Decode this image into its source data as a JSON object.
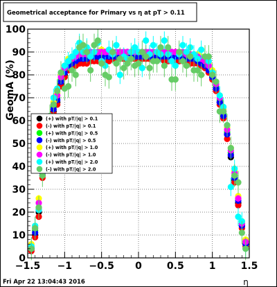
{
  "chart_data": {
    "type": "scatter",
    "title": "Geometrical acceptance for Primary vs   η at pT > 0.11",
    "xlabel": "η",
    "ylabel": "GeomA (%)",
    "xlim": [
      -1.5,
      1.5
    ],
    "ylim": [
      0,
      100
    ],
    "xticks": [
      "−1.5",
      "−1",
      "−0.5",
      "0",
      "0.5",
      "1",
      "1.5"
    ],
    "yticks": [
      "0",
      "10",
      "20",
      "30",
      "40",
      "50",
      "60",
      "70",
      "80",
      "90",
      "100"
    ],
    "grid": true,
    "legend_position": "middle-left",
    "eta_bins": [
      -1.45,
      -1.4,
      -1.35,
      -1.3,
      -1.25,
      -1.2,
      -1.15,
      -1.1,
      -1.05,
      -1.0,
      -0.95,
      -0.9,
      -0.85,
      -0.8,
      -0.75,
      -0.7,
      -0.65,
      -0.6,
      -0.55,
      -0.5,
      -0.45,
      -0.4,
      -0.35,
      -0.3,
      -0.25,
      -0.2,
      -0.15,
      -0.1,
      -0.05,
      0.0,
      0.05,
      0.1,
      0.15,
      0.2,
      0.25,
      0.3,
      0.35,
      0.4,
      0.45,
      0.5,
      0.55,
      0.6,
      0.65,
      0.7,
      0.75,
      0.8,
      0.85,
      0.9,
      0.95,
      1.0,
      1.05,
      1.1,
      1.15,
      1.2,
      1.25,
      1.3,
      1.35,
      1.4,
      1.45
    ],
    "series": [
      {
        "name": "(+) with pT/|q| > 0.1",
        "color": "#000000",
        "marker_fraction": 1.0,
        "err": [
          0.6,
          0.6,
          0.6,
          0.6,
          0.6,
          0.6,
          0.6,
          0.6,
          0.6,
          0.6,
          0.6,
          0.6,
          0.6,
          0.6,
          0.6,
          0.6,
          0.6,
          0.6,
          0.6,
          0.6,
          0.6,
          0.6,
          0.6,
          0.6,
          0.6,
          0.6,
          0.6,
          0.6,
          0.6,
          0.6,
          0.6,
          0.6,
          0.6,
          0.6,
          0.6,
          0.6,
          0.6,
          0.6,
          0.6,
          0.6,
          0.6,
          0.6,
          0.6,
          0.6,
          0.6,
          0.6,
          0.6,
          0.6,
          0.6,
          0.6,
          0.6,
          0.6,
          0.6,
          0.6,
          0.6,
          0.6,
          0.6,
          0.6,
          0.6
        ],
        "values": [
          4,
          10,
          20,
          36,
          46,
          56,
          64,
          68,
          76,
          80,
          83,
          84,
          85,
          86,
          86,
          86,
          87,
          87,
          87,
          87,
          87,
          87,
          88,
          88,
          88,
          88,
          88,
          88,
          88,
          88,
          88,
          88,
          88,
          88,
          88,
          88,
          87,
          87,
          87,
          87,
          87,
          87,
          87,
          86,
          86,
          86,
          85,
          84,
          82,
          79,
          74,
          68,
          62,
          54,
          44,
          34,
          24,
          14,
          6
        ]
      },
      {
        "name": "(-) with pT/|q| > 0.1",
        "color": "#ff0000",
        "marker_fraction": 0.95,
        "err": [
          0.6,
          0.6,
          0.6,
          0.6,
          0.6,
          0.6,
          0.6,
          0.6,
          0.6,
          0.6,
          0.6,
          0.6,
          0.6,
          0.6,
          0.6,
          0.6,
          0.6,
          0.6,
          0.6,
          0.6,
          0.6,
          0.6,
          0.6,
          0.6,
          0.6,
          0.6,
          0.6,
          0.6,
          0.6,
          0.6,
          0.6,
          0.6,
          0.6,
          0.6,
          0.6,
          0.6,
          0.6,
          0.6,
          0.6,
          0.6,
          0.6,
          0.6,
          0.6,
          0.6,
          0.6,
          0.6,
          0.6,
          0.6,
          0.6,
          0.6,
          0.6,
          0.6,
          0.6,
          0.6,
          0.6,
          0.6,
          0.6,
          0.6,
          0.6
        ],
        "values": [
          3,
          9,
          18,
          35,
          45,
          55,
          63,
          67,
          75,
          79,
          82,
          83,
          84,
          85,
          85,
          85,
          86,
          86,
          86,
          86,
          86,
          86,
          87,
          87,
          87,
          87,
          87,
          87,
          87,
          87,
          87,
          87,
          87,
          87,
          87,
          87,
          86,
          86,
          86,
          86,
          86,
          86,
          86,
          85,
          85,
          85,
          84,
          83,
          81,
          78,
          73,
          67,
          61,
          52,
          45,
          33,
          23,
          13,
          5
        ]
      },
      {
        "name": "(+) with pT/|q| > 0.5",
        "color": "#00ff00",
        "marker_fraction": 0.95,
        "err": [
          1,
          1,
          1,
          1,
          1,
          1,
          1,
          1,
          1,
          1,
          1,
          1,
          1,
          1,
          1,
          1,
          1,
          1,
          1,
          1,
          1,
          1,
          1,
          1,
          1,
          1,
          1,
          1,
          1,
          1,
          1,
          1,
          1,
          1,
          1,
          1,
          1,
          1,
          1,
          1,
          1,
          1,
          1,
          1,
          1,
          1,
          1,
          1,
          1,
          1,
          1,
          1,
          1,
          1,
          1,
          1,
          1,
          1,
          1
        ],
        "values": [
          5,
          12,
          22,
          38,
          48,
          58,
          66,
          70,
          78,
          82,
          85,
          86,
          87,
          88,
          88,
          88,
          89,
          89,
          89,
          89,
          89,
          89,
          89,
          89,
          89,
          89,
          89,
          89,
          89,
          89,
          89,
          89,
          89,
          89,
          89,
          89,
          89,
          89,
          89,
          89,
          89,
          89,
          88,
          88,
          88,
          87,
          86,
          85,
          83,
          80,
          75,
          69,
          63,
          55,
          46,
          36,
          26,
          15,
          7
        ]
      },
      {
        "name": "(-) with pT/|q| > 0.5",
        "color": "#0000ff",
        "marker_fraction": 0.95,
        "err": [
          1,
          1,
          1,
          1,
          1,
          1,
          1,
          1,
          1,
          1,
          1,
          1,
          1,
          1,
          1,
          1,
          1,
          1,
          1,
          1,
          1,
          1,
          1,
          1,
          1,
          1,
          1,
          1,
          1,
          1,
          1,
          1,
          1,
          1,
          1,
          1,
          1,
          1,
          1,
          1,
          1,
          1,
          1,
          1,
          1,
          1,
          1,
          1,
          1,
          1,
          1,
          1,
          1,
          1,
          1,
          1,
          1,
          1,
          1
        ],
        "values": [
          4,
          11,
          21,
          37,
          47,
          57,
          65,
          69,
          77,
          81,
          84,
          85,
          86,
          87,
          87,
          87,
          88,
          88,
          88,
          88,
          88,
          88,
          88,
          88,
          88,
          88,
          88,
          88,
          88,
          88,
          88,
          88,
          88,
          88,
          88,
          88,
          88,
          88,
          88,
          88,
          88,
          88,
          87,
          87,
          87,
          86,
          85,
          84,
          82,
          79,
          74,
          68,
          62,
          54,
          45,
          35,
          25,
          14,
          6
        ]
      },
      {
        "name": "(+) with pT/|q| > 1.0",
        "color": "#ffff00",
        "marker_fraction": 0.95,
        "err": [
          1.5,
          1.5,
          1.5,
          1.5,
          1.5,
          1.5,
          1.5,
          1.5,
          1.5,
          1.5,
          1.5,
          1.5,
          1.5,
          1.5,
          1.5,
          1.5,
          1.5,
          1.5,
          1.5,
          1.5,
          1.5,
          1.5,
          1.5,
          1.5,
          1.5,
          1.5,
          1.5,
          1.5,
          1.5,
          1.5,
          1.5,
          1.5,
          1.5,
          1.5,
          1.5,
          1.5,
          1.5,
          1.5,
          1.5,
          1.5,
          1.5,
          1.5,
          1.5,
          1.5,
          1.5,
          1.5,
          1.5,
          1.5,
          1.5,
          1.5,
          1.5,
          1.5,
          1.5,
          1.5,
          1.5,
          1.5,
          1.5,
          1.5,
          1.5
        ],
        "values": [
          6,
          14,
          26,
          40,
          50,
          60,
          68,
          72,
          80,
          84,
          87,
          88,
          89,
          90,
          90,
          90,
          90,
          90,
          90,
          91,
          90,
          90,
          90,
          90,
          90,
          90,
          90,
          90,
          90,
          90,
          90,
          90,
          90,
          90,
          90,
          90,
          90,
          90,
          90,
          90,
          90,
          90,
          89,
          89,
          89,
          89,
          88,
          87,
          85,
          82,
          77,
          71,
          65,
          57,
          48,
          38,
          27,
          16,
          8
        ]
      },
      {
        "name": "(-) with pT/|q| > 1.0",
        "color": "#ff00ff",
        "marker_fraction": 0.95,
        "err": [
          1.5,
          1.5,
          1.5,
          1.5,
          1.5,
          1.5,
          1.5,
          1.5,
          1.5,
          1.5,
          1.5,
          1.5,
          1.5,
          1.5,
          1.5,
          1.5,
          1.5,
          1.5,
          1.5,
          1.5,
          1.5,
          1.5,
          1.5,
          1.5,
          1.5,
          1.5,
          1.5,
          1.5,
          1.5,
          1.5,
          1.5,
          1.5,
          1.5,
          1.5,
          1.5,
          1.5,
          1.5,
          1.5,
          1.5,
          1.5,
          1.5,
          1.5,
          1.5,
          1.5,
          1.5,
          1.5,
          1.5,
          1.5,
          1.5,
          1.5,
          1.5,
          1.5,
          1.5,
          1.5,
          1.5,
          1.5,
          1.5,
          1.5,
          1.5
        ],
        "values": [
          5,
          13,
          24,
          39,
          49,
          59,
          67,
          71,
          79,
          83,
          86,
          87,
          88,
          89,
          89,
          89,
          90,
          90,
          90,
          90,
          90,
          90,
          90,
          90,
          90,
          90,
          90,
          90,
          90,
          90,
          90,
          90,
          90,
          90,
          90,
          90,
          90,
          90,
          90,
          90,
          90,
          90,
          89,
          89,
          89,
          88,
          87,
          86,
          84,
          81,
          76,
          70,
          64,
          56,
          47,
          37,
          26,
          15,
          7
        ]
      },
      {
        "name": "(+) with pT/|q| > 2.0",
        "color": "#00ffff",
        "marker_fraction": 0.95,
        "err": [
          4,
          4,
          4,
          4,
          4,
          4,
          4,
          4,
          4,
          4,
          4,
          4,
          4,
          4,
          4,
          4,
          4,
          4,
          4,
          4,
          4,
          4,
          4,
          4,
          4,
          4,
          4,
          4,
          4,
          4,
          4,
          4,
          4,
          4,
          4,
          4,
          4,
          4,
          4,
          4,
          4,
          4,
          4,
          4,
          4,
          4,
          4,
          4,
          4,
          4,
          4,
          4,
          4,
          4,
          4,
          4,
          4,
          4,
          4
        ],
        "values": [
          5,
          14,
          21,
          38,
          48,
          62,
          70,
          74,
          81,
          84,
          86,
          88,
          90,
          94,
          90,
          92,
          88,
          90,
          94,
          86,
          84,
          91,
          89,
          93,
          80,
          88,
          87,
          90,
          92,
          90,
          83,
          95,
          89,
          93,
          90,
          89,
          95,
          89,
          86,
          84,
          89,
          93,
          90,
          92,
          89,
          87,
          91,
          88,
          86,
          81,
          77,
          71,
          66,
          58,
          31,
          39,
          18,
          16,
          4
        ]
      },
      {
        "name": "(-) with pT/|q| > 2.0",
        "color": "#66cc66",
        "marker_fraction": 0.95,
        "err": [
          5,
          5,
          5,
          5,
          5,
          5,
          5,
          5,
          5,
          5,
          5,
          5,
          5,
          5,
          5,
          5,
          5,
          5,
          5,
          5,
          5,
          5,
          5,
          5,
          5,
          5,
          5,
          5,
          5,
          5,
          5,
          5,
          5,
          5,
          5,
          5,
          5,
          5,
          5,
          5,
          5,
          5,
          5,
          5,
          5,
          5,
          5,
          5,
          5,
          5,
          5,
          5,
          5,
          5,
          5,
          5,
          5,
          5,
          5
        ],
        "values": [
          4,
          13,
          22,
          36,
          48,
          62,
          67,
          73,
          81,
          74,
          75,
          82,
          80,
          92,
          93,
          90,
          82,
          93,
          95,
          85,
          80,
          79,
          90,
          85,
          87,
          83,
          85,
          87,
          84,
          85,
          90,
          88,
          83,
          86,
          86,
          92,
          84,
          92,
          78,
          78,
          90,
          86,
          84,
          88,
          82,
          82,
          80,
          88,
          88,
          80,
          77,
          64,
          64,
          58,
          48,
          36,
          33,
          11,
          4
        ]
      }
    ]
  },
  "footer": {
    "timestamp": "Fri Apr 22 13:04:43 2016"
  }
}
